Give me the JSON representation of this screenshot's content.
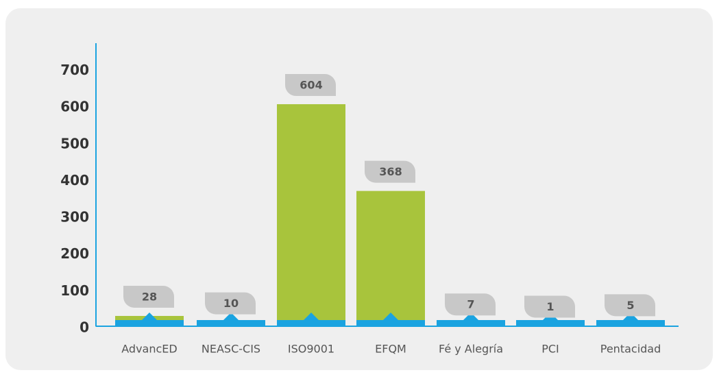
{
  "chart_data": {
    "type": "bar",
    "categories": [
      "AdvancED",
      "NEASC-CIS",
      "ISO9001",
      "EFQM",
      "Fé y Alegría",
      "PCI",
      "Pentacidad"
    ],
    "values": [
      28,
      10,
      604,
      368,
      7,
      1,
      5
    ],
    "color": "#a8c43c",
    "ylim": [
      0,
      770
    ],
    "yticks": [
      0,
      100,
      200,
      300,
      400,
      500,
      600,
      700
    ]
  }
}
